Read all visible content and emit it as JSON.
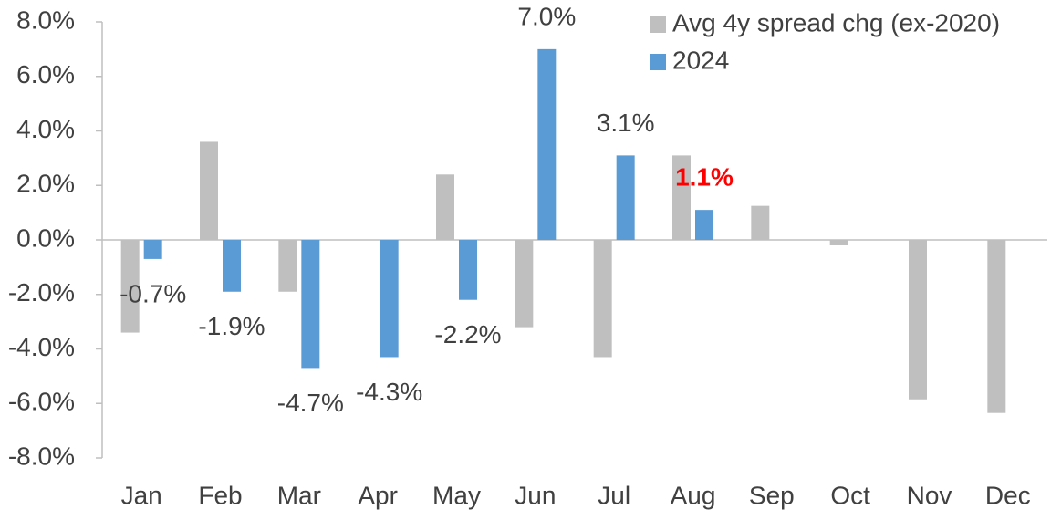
{
  "chart_data": {
    "type": "bar",
    "categories": [
      "Jan",
      "Feb",
      "Mar",
      "Apr",
      "May",
      "Jun",
      "Jul",
      "Aug",
      "Sep",
      "Oct",
      "Nov",
      "Dec"
    ],
    "series": [
      {
        "name": "Avg 4y spread chg (ex-2020)",
        "color": "#bfbfbf",
        "values": [
          -3.4,
          3.6,
          -1.9,
          null,
          2.4,
          -3.2,
          -4.3,
          3.1,
          1.25,
          -0.2,
          -5.85,
          -6.35
        ]
      },
      {
        "name": "2024",
        "color": "#5b9bd5",
        "values": [
          -0.7,
          -1.9,
          -4.7,
          -4.3,
          -2.2,
          7.0,
          3.1,
          1.1,
          null,
          null,
          null,
          null
        ],
        "value_labels": [
          "-0.7%",
          "-1.9%",
          "-4.7%",
          "-4.3%",
          "-2.2%",
          "7.0%",
          "3.1%",
          "1.1%",
          null,
          null,
          null,
          null
        ],
        "highlight_label": {
          "index": 7,
          "color": "#ff0000"
        }
      }
    ],
    "ylim": [
      -8,
      8
    ],
    "yticks": [
      {
        "value": -8,
        "label": "-8.0%"
      },
      {
        "value": -6,
        "label": "-6.0%"
      },
      {
        "value": -4,
        "label": "-4.0%"
      },
      {
        "value": -2,
        "label": "-2.0%"
      },
      {
        "value": 0,
        "label": "0.0%"
      },
      {
        "value": 2,
        "label": "2.0%"
      },
      {
        "value": 4,
        "label": "4.0%"
      },
      {
        "value": 6,
        "label": "6.0%"
      },
      {
        "value": 8,
        "label": "8.0%"
      }
    ],
    "grid": false,
    "legend": "top-right"
  }
}
